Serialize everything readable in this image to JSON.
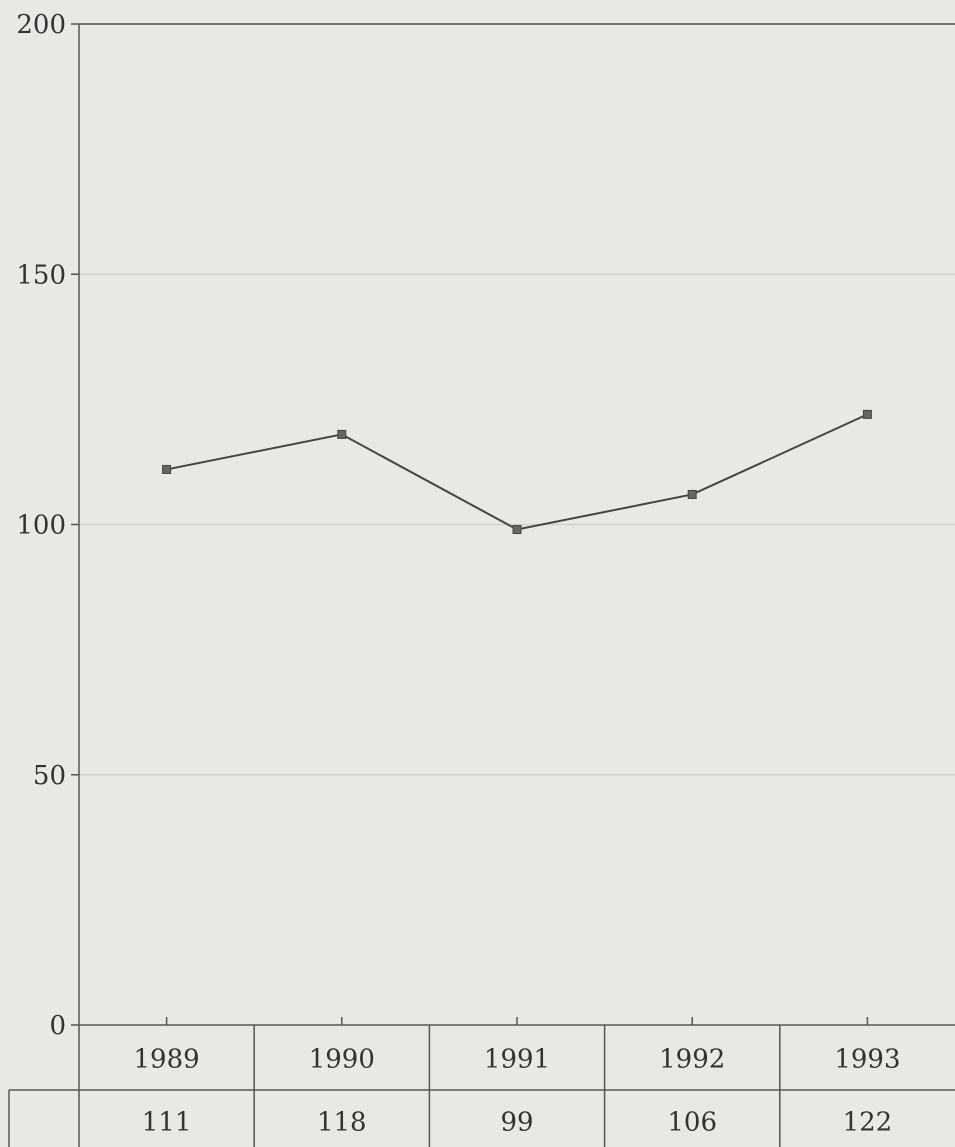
{
  "chart_data": {
    "type": "line",
    "categories": [
      "1989",
      "1990",
      "1991",
      "1992",
      "1993"
    ],
    "series": [
      {
        "values": [
          111,
          118,
          99,
          106,
          122
        ]
      }
    ],
    "value_labels": [
      "111",
      "118",
      "99",
      "106",
      "122"
    ],
    "y_ticks": [
      "0",
      "50",
      "100",
      "150",
      "200"
    ],
    "ylim": [
      0,
      200
    ],
    "grid": true,
    "legend": "none",
    "data_table": true
  },
  "colors": {
    "background": "#e9e8e4",
    "gridline": "#cfcfcf",
    "axis": "#555555",
    "line": "#444444",
    "marker": "#666666",
    "text": "#333333"
  }
}
